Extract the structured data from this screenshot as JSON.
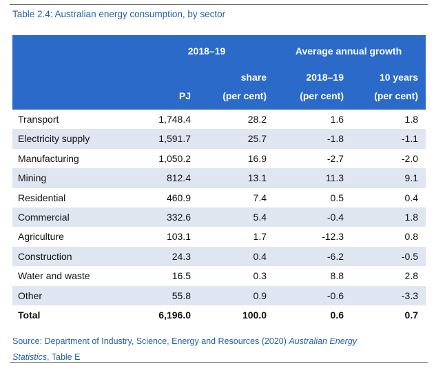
{
  "caption": "Table 2.4: Australian energy consumption, by sector",
  "header": {
    "group1": "2018–19",
    "group2": "Average annual growth",
    "share_line1": "share",
    "share_line2": "(per cent)",
    "g_1819": "2018–19",
    "g_1819_sub": "(per cent)",
    "g_10y": "10 years",
    "g_10y_sub": "(per cent)",
    "pj": "PJ"
  },
  "rows": [
    {
      "label": "Transport",
      "pj": "1,748.4",
      "share": "28.2",
      "g1": "1.6",
      "g10": "1.8"
    },
    {
      "label": "Electricity supply",
      "pj": "1,591.7",
      "share": "25.7",
      "g1": "-1.8",
      "g10": "-1.1"
    },
    {
      "label": "Manufacturing",
      "pj": "1,050.2",
      "share": "16.9",
      "g1": "-2.7",
      "g10": "-2.0"
    },
    {
      "label": "Mining",
      "pj": "812.4",
      "share": "13.1",
      "g1": "11.3",
      "g10": "9.1"
    },
    {
      "label": "Residential",
      "pj": "460.9",
      "share": "7.4",
      "g1": "0.5",
      "g10": "0.4"
    },
    {
      "label": "Commercial",
      "pj": "332.6",
      "share": "5.4",
      "g1": "-0.4",
      "g10": "1.8"
    },
    {
      "label": "Agriculture",
      "pj": "103.1",
      "share": "1.7",
      "g1": "-12.3",
      "g10": "0.8"
    },
    {
      "label": "Construction",
      "pj": "24.3",
      "share": "0.4",
      "g1": "-6.2",
      "g10": "-0.5"
    },
    {
      "label": "Water and waste",
      "pj": "16.5",
      "share": "0.3",
      "g1": "8.8",
      "g10": "2.8"
    },
    {
      "label": "Other",
      "pj": "55.8",
      "share": "0.9",
      "g1": "-0.6",
      "g10": "-3.3"
    }
  ],
  "total": {
    "label": "Total",
    "pj": "6,196.0",
    "share": "100.0",
    "g1": "0.6",
    "g10": "0.7"
  },
  "source": {
    "prefix": "Source: Department of Industry, Science, Energy and Resources (2020) ",
    "title_line1": "Australian Energy",
    "title_line2": "Statistics",
    "suffix": ", Table E"
  }
}
